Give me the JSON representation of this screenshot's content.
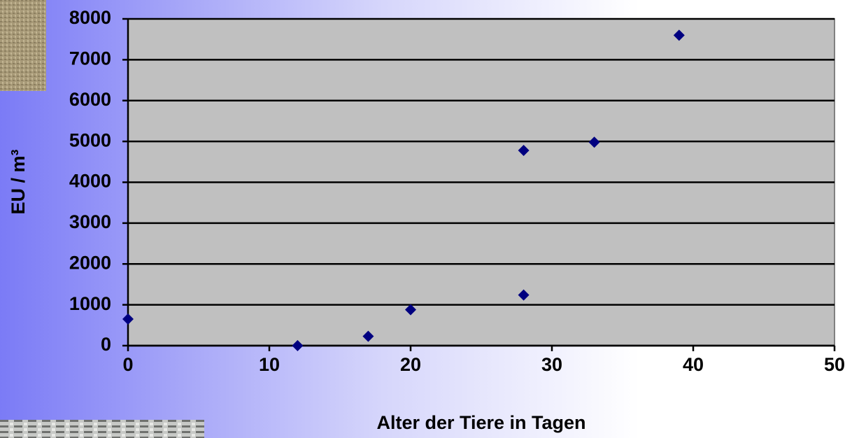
{
  "chart_data": {
    "type": "scatter",
    "x_label": "Alter der Tiere in Tagen",
    "y_label": "EU / m³",
    "x": [
      0,
      12,
      17,
      20,
      28,
      28,
      33,
      39
    ],
    "series": [
      {
        "color": "#000080",
        "values": [
          650,
          0,
          230,
          880,
          4780,
          1240,
          4980,
          7600
        ]
      }
    ],
    "xlim": [
      0,
      50
    ],
    "xticks": [
      0,
      10,
      20,
      30,
      40,
      50
    ],
    "ylim": [
      0,
      8000
    ],
    "yticks": [
      0,
      1000,
      2000,
      3000,
      4000,
      5000,
      6000,
      7000,
      8000
    ],
    "grid": true
  }
}
